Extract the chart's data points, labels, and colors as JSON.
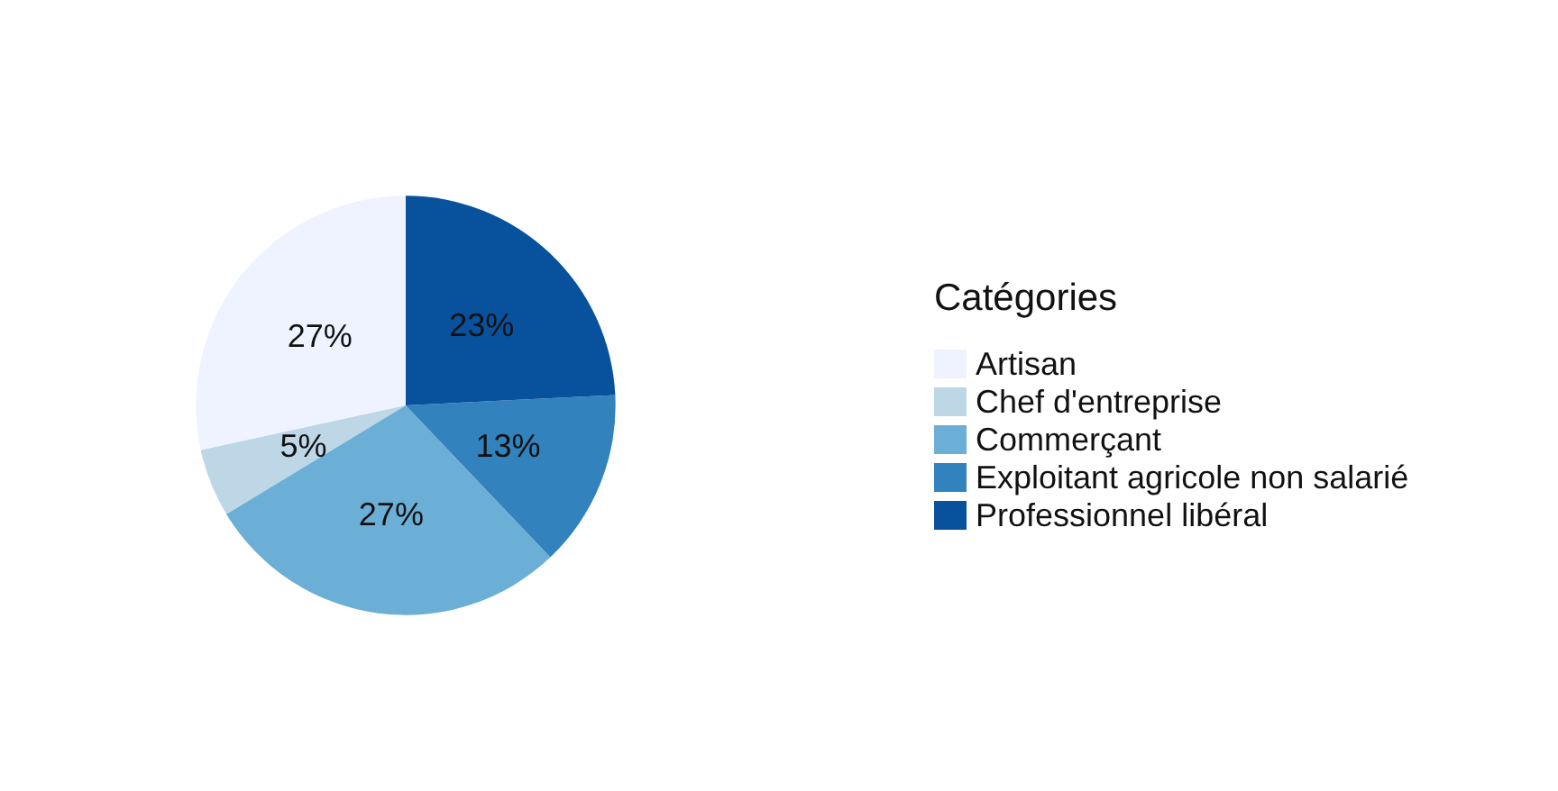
{
  "chart_data": {
    "type": "pie",
    "legend_title": "Catégories",
    "legend": "right",
    "categories": [
      "Artisan",
      "Chef d'entreprise",
      "Commerçant",
      "Exploitant agricole non salarié",
      "Professionnel libéral"
    ],
    "values": [
      27,
      5,
      27,
      13,
      23
    ],
    "value_labels": [
      "27%",
      "5%",
      "27%",
      "13%",
      "23%"
    ],
    "colors": [
      "#eff3ff",
      "#bdd7e7",
      "#6baed6",
      "#3182bd",
      "#08519c"
    ]
  }
}
